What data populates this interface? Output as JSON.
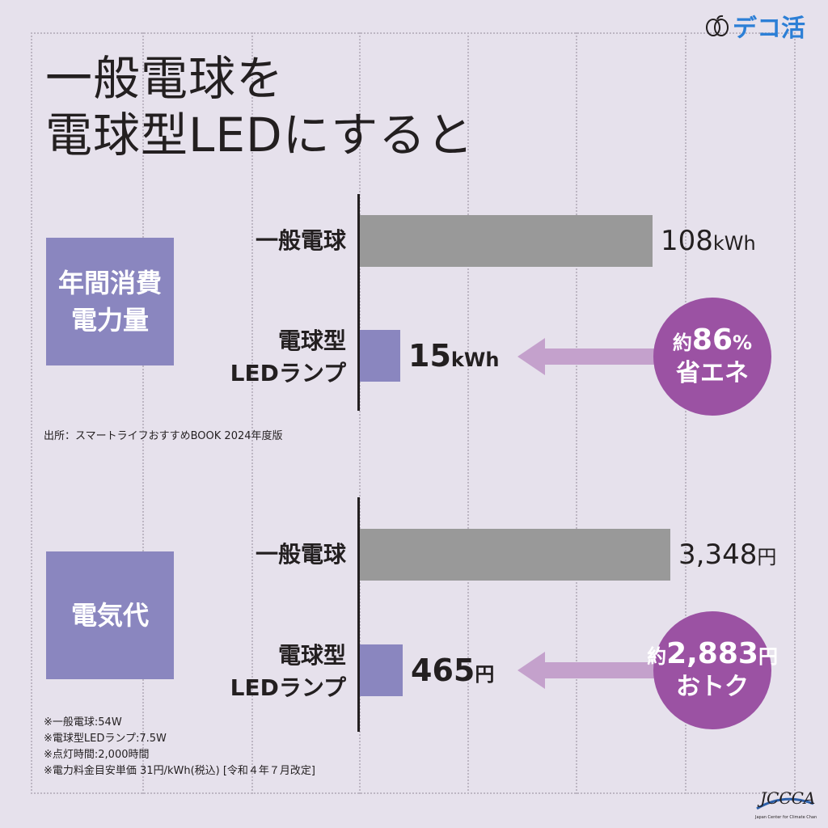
{
  "header": {
    "title": "一般電球を\n電球型LEDにすると",
    "logo_text": "デコ活"
  },
  "sections": [
    {
      "label_lines": [
        "年間消費",
        "電力量"
      ],
      "badge": {
        "prefix": "約",
        "value": "86",
        "suffix": "%",
        "line2": "省エネ"
      }
    },
    {
      "label_lines": [
        "電気代"
      ],
      "badge": {
        "prefix": "約",
        "value": "2,883",
        "suffix": "円",
        "line2": "おトク"
      }
    }
  ],
  "chart_data": [
    {
      "type": "bar",
      "orientation": "horizontal",
      "categories": [
        "一般電球",
        "電球型\nLEDランプ"
      ],
      "values": [
        108,
        15
      ],
      "value_labels": [
        {
          "number": "108",
          "unit": "kWh"
        },
        {
          "number": "15",
          "unit": "kWh"
        }
      ],
      "unit": "kWh",
      "colors": [
        "#999999",
        "#8a86bf"
      ]
    },
    {
      "type": "bar",
      "orientation": "horizontal",
      "categories": [
        "一般電球",
        "電球型\nLEDランプ"
      ],
      "values": [
        3348,
        465
      ],
      "value_labels": [
        {
          "number": "3,348",
          "unit": "円"
        },
        {
          "number": "465",
          "unit": "円"
        }
      ],
      "unit": "円",
      "colors": [
        "#999999",
        "#8a86bf"
      ]
    }
  ],
  "source": "出所：スマートライフおすすめBOOK 2024年度版",
  "notes": [
    "※一般電球:54W",
    "※電球型LEDランプ:7.5W",
    "※点灯時間:2,000時間",
    "※電力料金目安単価 31円/kWh(税込) [令和４年７月改定]"
  ],
  "footer_logo": {
    "text": "JCCCA",
    "subtext": "Japan Center for Climate Change Actions"
  },
  "colors": {
    "background": "#e6e1ec",
    "gray_bar": "#999999",
    "led_bar": "#8a86bf",
    "accent": "#9b52a3",
    "arrow": "#c4a1cc",
    "logo_blue": "#2c7fd6"
  }
}
